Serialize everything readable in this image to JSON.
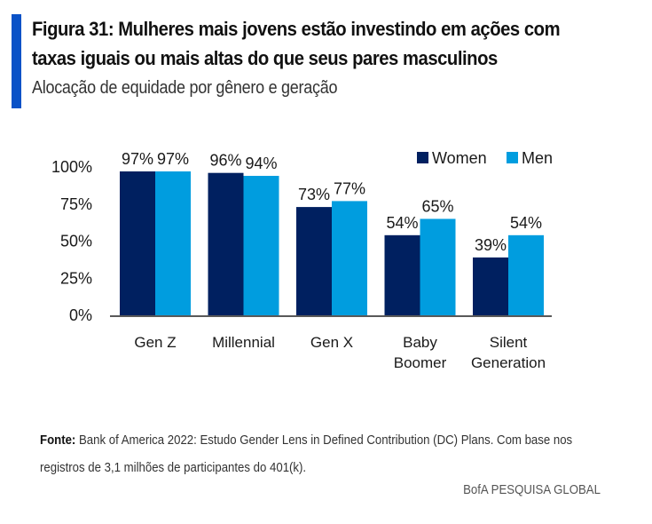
{
  "header": {
    "title_line1": "Figura 31: Mulheres mais jovens estão investindo em ações com",
    "title_line2": "taxas iguais ou mais altas do que seus pares masculinos",
    "subtitle": "Alocação de equidade por gênero e geração",
    "accent_color": "#0a52c7"
  },
  "chart_data": {
    "type": "bar",
    "title": "Alocação de equidade por gênero e geração",
    "xlabel": "",
    "ylabel": "",
    "ylim": [
      0,
      100
    ],
    "yticks": [
      0,
      25,
      50,
      75,
      100
    ],
    "ytick_labels": [
      "0%",
      "25%",
      "50%",
      "75%",
      "100%"
    ],
    "grid": false,
    "legend_position": "top-right",
    "categories": [
      "Gen Z",
      "Millennial",
      "Gen X",
      "Baby Boomer",
      "Silent Generation"
    ],
    "category_lines": [
      [
        "Gen Z"
      ],
      [
        "Millennial"
      ],
      [
        "Gen X"
      ],
      [
        "Baby",
        "Boomer"
      ],
      [
        "Silent",
        "Generation"
      ]
    ],
    "series": [
      {
        "name": "Women",
        "color": "#002060",
        "values": [
          97,
          96,
          73,
          54,
          39
        ],
        "labels": [
          "97%",
          "96%",
          "73%",
          "54%",
          "39%"
        ]
      },
      {
        "name": "Men",
        "color": "#009ddf",
        "values": [
          97,
          94,
          77,
          65,
          54
        ],
        "labels": [
          "97%",
          "94%",
          "77%",
          "65%",
          "54%"
        ]
      }
    ]
  },
  "footer": {
    "source_label": "Fonte:",
    "source_text": " Bank of America 2022: Estudo Gender Lens in Defined Contribution (DC) Plans. Com base nos registros de 3,1 milhões de participantes do 401(k).",
    "brand": "BofA PESQUISA GLOBAL"
  }
}
